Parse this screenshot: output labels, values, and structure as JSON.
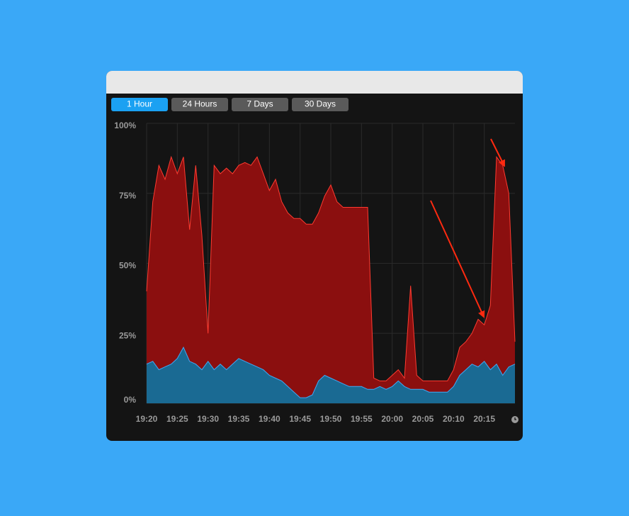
{
  "tabs": [
    "1 Hour",
    "24 Hours",
    "7 Days",
    "30 Days"
  ],
  "active_tab": 0,
  "chart_data": {
    "type": "area",
    "x": [
      "19:20",
      null,
      null,
      null,
      null,
      "19:25",
      null,
      null,
      null,
      null,
      "19:30",
      null,
      null,
      null,
      null,
      "19:35",
      null,
      null,
      null,
      null,
      "19:40",
      null,
      null,
      null,
      null,
      "19:45",
      null,
      null,
      null,
      null,
      "19:50",
      null,
      null,
      null,
      null,
      "19:55",
      null,
      null,
      null,
      null,
      "20:00",
      null,
      null,
      null,
      null,
      "20:05",
      null,
      null,
      null,
      null,
      "20:10",
      null,
      null,
      null,
      null,
      "20:15",
      null,
      null,
      null,
      null,
      null
    ],
    "series": [
      {
        "color": "#ff3b30",
        "fill": "#8b0f0f",
        "values": [
          40,
          72,
          85,
          80,
          88,
          82,
          88,
          62,
          85,
          60,
          25,
          85,
          82,
          84,
          82,
          85,
          86,
          85,
          88,
          82,
          76,
          80,
          72,
          68,
          66,
          66,
          64,
          64,
          68,
          74,
          78,
          72,
          70,
          70,
          70,
          70,
          70,
          9,
          8,
          8,
          10,
          12,
          9,
          42,
          10,
          8,
          8,
          8,
          8,
          8,
          12,
          20,
          22,
          25,
          30,
          28,
          35,
          88,
          85,
          75,
          22
        ]
      },
      {
        "color": "#3fa9f5",
        "fill": "#1a6a93",
        "values": [
          14,
          15,
          12,
          13,
          14,
          16,
          20,
          15,
          14,
          12,
          15,
          12,
          14,
          12,
          14,
          16,
          15,
          14,
          13,
          12,
          10,
          9,
          8,
          6,
          4,
          2,
          2,
          3,
          8,
          10,
          9,
          8,
          7,
          6,
          6,
          6,
          5,
          5,
          6,
          5,
          6,
          8,
          6,
          5,
          5,
          5,
          4,
          4,
          4,
          4,
          6,
          10,
          12,
          14,
          13,
          15,
          12,
          14,
          10,
          13,
          14
        ]
      }
    ],
    "ylim": [
      0,
      100
    ],
    "yticks": [
      {
        "value": 0,
        "label": "0%"
      },
      {
        "value": 25,
        "label": "25%"
      },
      {
        "value": 50,
        "label": "50%"
      },
      {
        "value": 75,
        "label": "75%"
      },
      {
        "value": 100,
        "label": "100%"
      }
    ],
    "grid": true
  }
}
